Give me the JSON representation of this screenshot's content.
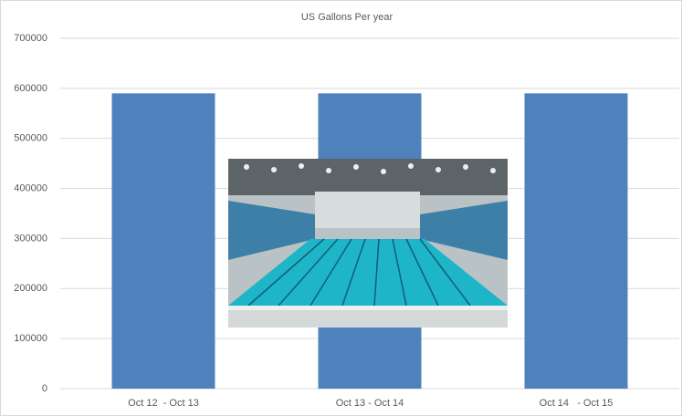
{
  "chart_data": {
    "type": "bar",
    "title": "US Gallons Per year",
    "categories": [
      "Oct 12  - Oct 13",
      "Oct 13 - Oct 14",
      "Oct 14   - Oct 15"
    ],
    "values": [
      590000,
      590000,
      590000
    ],
    "color": "#4f81bd",
    "ylim": [
      0,
      700000
    ],
    "yticks": [
      0,
      100000,
      200000,
      300000,
      400000,
      500000,
      600000,
      700000
    ],
    "grid": true
  }
}
